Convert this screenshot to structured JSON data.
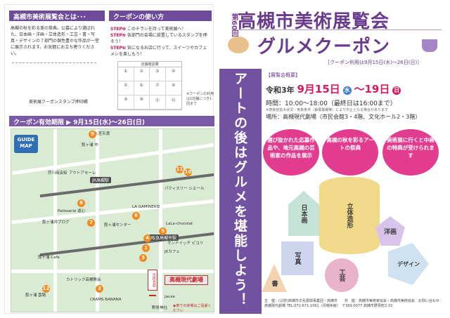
{
  "left": {
    "guide": {
      "heading": "高槻市美術展覧会とは･･･",
      "text": "高槻の秋を彩る美の祭典。公募により選ばれた、日本画・洋画・立体造形・工芸・書・写真・デザインの７部門の個性豊かな作品が一堂に展示されます。お気軽にお立ち寄りください。",
      "stamp_label": "美術展クーポンスタンプ押印欄"
    },
    "usage": {
      "heading": "クーポンの使い方",
      "steps": [
        {
          "no": "STEP❶",
          "text": "このチラシを持って美術展へ！"
        },
        {
          "no": "STEP❷",
          "text": "各部門の会場に設置しているスタンプを押そう！"
        },
        {
          "no": "STEP❸",
          "text": "気になるお店に行って、スイーツやカフェメシを楽しもう！"
        }
      ],
      "grid_header": "店舗確認欄",
      "cells": [
        "①",
        "②",
        "③",
        "④",
        "⑤",
        "⑥",
        "⑦",
        "⑧",
        "⑨",
        "⑩",
        "⑪",
        "⑫"
      ],
      "note": "※クーポンの利用は1店舗につき1回まで"
    },
    "valid_period": "クーポン有効期限 ▶ 9月15日(水)〜26日(日)",
    "map": {
      "badge": "GUIDE MAP",
      "labels": [
        "上宮天満",
        "芥川商店街",
        "アクトアモーレ",
        "JR高槻駅",
        "阪急高槻市駅",
        "LA GAMINERIE",
        "Patisserie 遊心",
        "髭ヶ浦井ブログ",
        "髭ヶ浦センター",
        "LaLa-chocolat",
        "サンドイッチ ピコリ",
        "JKカフェ",
        "髭ヶ浦 Cafe",
        "カトリック高槻教会",
        "CRAMS BANANA",
        "髭ヶ浦 雲路",
        "髭ヶ浦 中",
        "パティスリー シエール",
        "Jause",
        "野見神社"
      ],
      "pins": [
        "1",
        "2",
        "3",
        "4",
        "5",
        "6",
        "7",
        "8",
        "9",
        "10",
        "11",
        "12"
      ],
      "venue": "高槻現代劇場",
      "venue_building": "市民会館",
      "park_note": "◉車での来場はご遠慮ください"
    }
  },
  "right": {
    "edition": "第60回",
    "title1": "高槻市美術展覧会",
    "title2": "グルメクーポン",
    "coupon_period": "［クーポン利用は9月15日(水)〜26日(日)］",
    "vertical_title": "アートの後はグルメを堪能しよう！",
    "overview_label": "【展覧会概要】",
    "period": {
      "prefix": "令和3年",
      "start": "9月15日",
      "start_dow": "水",
      "end": "〜19日",
      "end_dow": "日"
    },
    "time": "時間：10:00〜18:00（最終日は16:00まで）",
    "time_note": "※感染症拡大状況・気象条件（暴風警報等）により中止となる場合があります",
    "place": "場所：高槻現代劇場（市民会館3・4階、文化ホール2・3階）",
    "features": [
      "選び抜かれた応募作品や、地元高槻の芸術家の作品を展示",
      "高槻の秋を彩るアートの祭典",
      "美術展に行くと中画の特典が受けられます"
    ],
    "shapes": [
      "日本画",
      "立体造形",
      "写真",
      "書",
      "工芸",
      "洋画",
      "デザイン"
    ],
    "footer": "主　催：(公財)高槻市文化振興事業団・高槻市　　共　催：高槻市美術家協会・高槻市美術協会　お問い合わせ：高槻現代劇場 TEL:072-671-1061（月曜休館）　〒569-0077 高槻市野見町2-33"
  },
  "colors": {
    "purple": "#6a3a8e",
    "pink": "#e13c8e",
    "orange_pin": "#f28a1e",
    "map_bg": "#d9ebd3"
  }
}
